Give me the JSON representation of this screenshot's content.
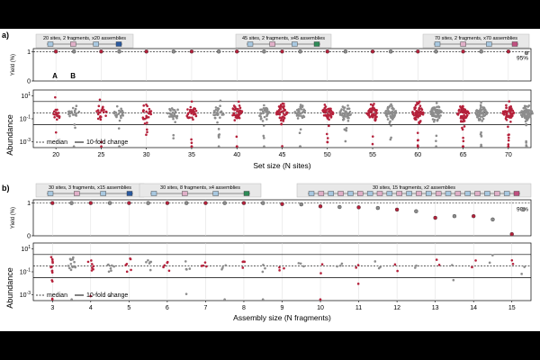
{
  "chart_data": [
    {
      "type": "scatter",
      "panel_label": "a)",
      "xlabel": "Set size (N sites)",
      "x_ticks": [
        20,
        25,
        30,
        35,
        40,
        45,
        50,
        55,
        60,
        65,
        70
      ],
      "xlim": [
        17.5,
        72.5
      ],
      "top_plot": {
        "ylabel": "Yield (%)",
        "y_ticks": [
          "0",
          "1"
        ],
        "ylim": [
          0,
          1.1
        ],
        "reference_label": "95%",
        "x": [
          20,
          22,
          25,
          27,
          30,
          33,
          35,
          38,
          40,
          43,
          45,
          47,
          50,
          52,
          55,
          57,
          60,
          62,
          65,
          67,
          70,
          72
        ],
        "values": [
          1.0,
          1.0,
          1.0,
          1.0,
          1.0,
          1.0,
          1.0,
          1.0,
          1.0,
          1.0,
          1.0,
          1.0,
          1.0,
          1.0,
          1.0,
          1.0,
          1.0,
          1.0,
          1.0,
          1.0,
          1.0,
          0.95
        ]
      },
      "bottom_plot": {
        "ylabel": "Abundance",
        "y_ticks": [
          "10^1",
          "10^-1",
          "10^-3"
        ],
        "ylim_log10": [
          -3.5,
          1.5
        ],
        "median_log10": -0.5,
        "tenfold_log10": [
          0.5,
          -1.5
        ],
        "sets": [
          20,
          22,
          25,
          27,
          30,
          33,
          35,
          38,
          40,
          43,
          45,
          47,
          50,
          52,
          55,
          57,
          60,
          62,
          65,
          67,
          70,
          72
        ],
        "counts": [
          20,
          20,
          25,
          25,
          30,
          30,
          35,
          35,
          40,
          40,
          45,
          45,
          50,
          50,
          55,
          55,
          60,
          60,
          65,
          65,
          70,
          70
        ]
      },
      "annotations": [
        {
          "text": "20 sites, 2 fragments, x20 assemblies"
        },
        {
          "text": "45 sites, 2 fragments, x45 assemblies"
        },
        {
          "text": "70 sites, 2 fragments, x70 assemblies"
        }
      ],
      "point_labels": [
        "A",
        "B"
      ],
      "legend": {
        "median": "median",
        "tenfold": "10-fold change",
        "placement": "bottom-left"
      }
    },
    {
      "type": "scatter",
      "panel_label": "b)",
      "xlabel": "Assembly size (N fragments)",
      "x_ticks": [
        3,
        4,
        5,
        6,
        7,
        8,
        9,
        10,
        11,
        12,
        13,
        14,
        15
      ],
      "xlim": [
        2.5,
        15.5
      ],
      "top_plot": {
        "ylabel": "Yield (%)",
        "y_ticks": [
          "0",
          "1"
        ],
        "ylim": [
          0,
          1.1
        ],
        "reference_label": "90%",
        "x": [
          3,
          3.5,
          4,
          4.5,
          5,
          5.5,
          6,
          6.5,
          7,
          7.5,
          8,
          8.5,
          9,
          9.5,
          10,
          10.5,
          11,
          11.5,
          12,
          12.5,
          13,
          13.5,
          14,
          14.5,
          15,
          15.3
        ],
        "values": [
          1.0,
          1.0,
          1.0,
          1.0,
          1.0,
          1.0,
          1.0,
          1.0,
          1.0,
          1.0,
          1.0,
          1.0,
          0.97,
          0.96,
          0.9,
          0.88,
          0.87,
          0.85,
          0.8,
          0.75,
          0.55,
          0.6,
          0.6,
          0.5,
          0.05,
          0.8
        ]
      },
      "bottom_plot": {
        "ylabel": "Abundance",
        "y_ticks": [
          "10^1",
          "10^-1",
          "10^-3"
        ],
        "ylim_log10": [
          -3.5,
          1.5
        ],
        "median_log10": -0.5,
        "tenfold_log10": [
          0.5,
          -1.5
        ],
        "sets": [
          3,
          3.5,
          4,
          4.5,
          5,
          5.5,
          6,
          6.5,
          7,
          7.5,
          8,
          8.5,
          9,
          9.5,
          10,
          10.5,
          11,
          11.5,
          12,
          12.5,
          13,
          13.5,
          14,
          14.5,
          15,
          15.3
        ],
        "counts": [
          15,
          15,
          8,
          8,
          6,
          6,
          5,
          5,
          4,
          4,
          4,
          4,
          3,
          3,
          3,
          3,
          3,
          3,
          2,
          2,
          2,
          2,
          2,
          2,
          2,
          2
        ]
      },
      "annotations": [
        {
          "text": "30 sites, 3 fragments, x15 assemblies"
        },
        {
          "text": "30 sites, 8 fragments, x4 assemblies"
        },
        {
          "text": "30 sites, 15 fragments, x2 assemblies"
        }
      ],
      "legend": {
        "median": "median",
        "tenfold": "10-fold change",
        "placement": "bottom-left"
      }
    }
  ],
  "colors": {
    "red": "#b5213b",
    "grey": "#8c8c8c",
    "panel_bg": "#ffffff",
    "annot_bg": "#e8e8e8"
  }
}
